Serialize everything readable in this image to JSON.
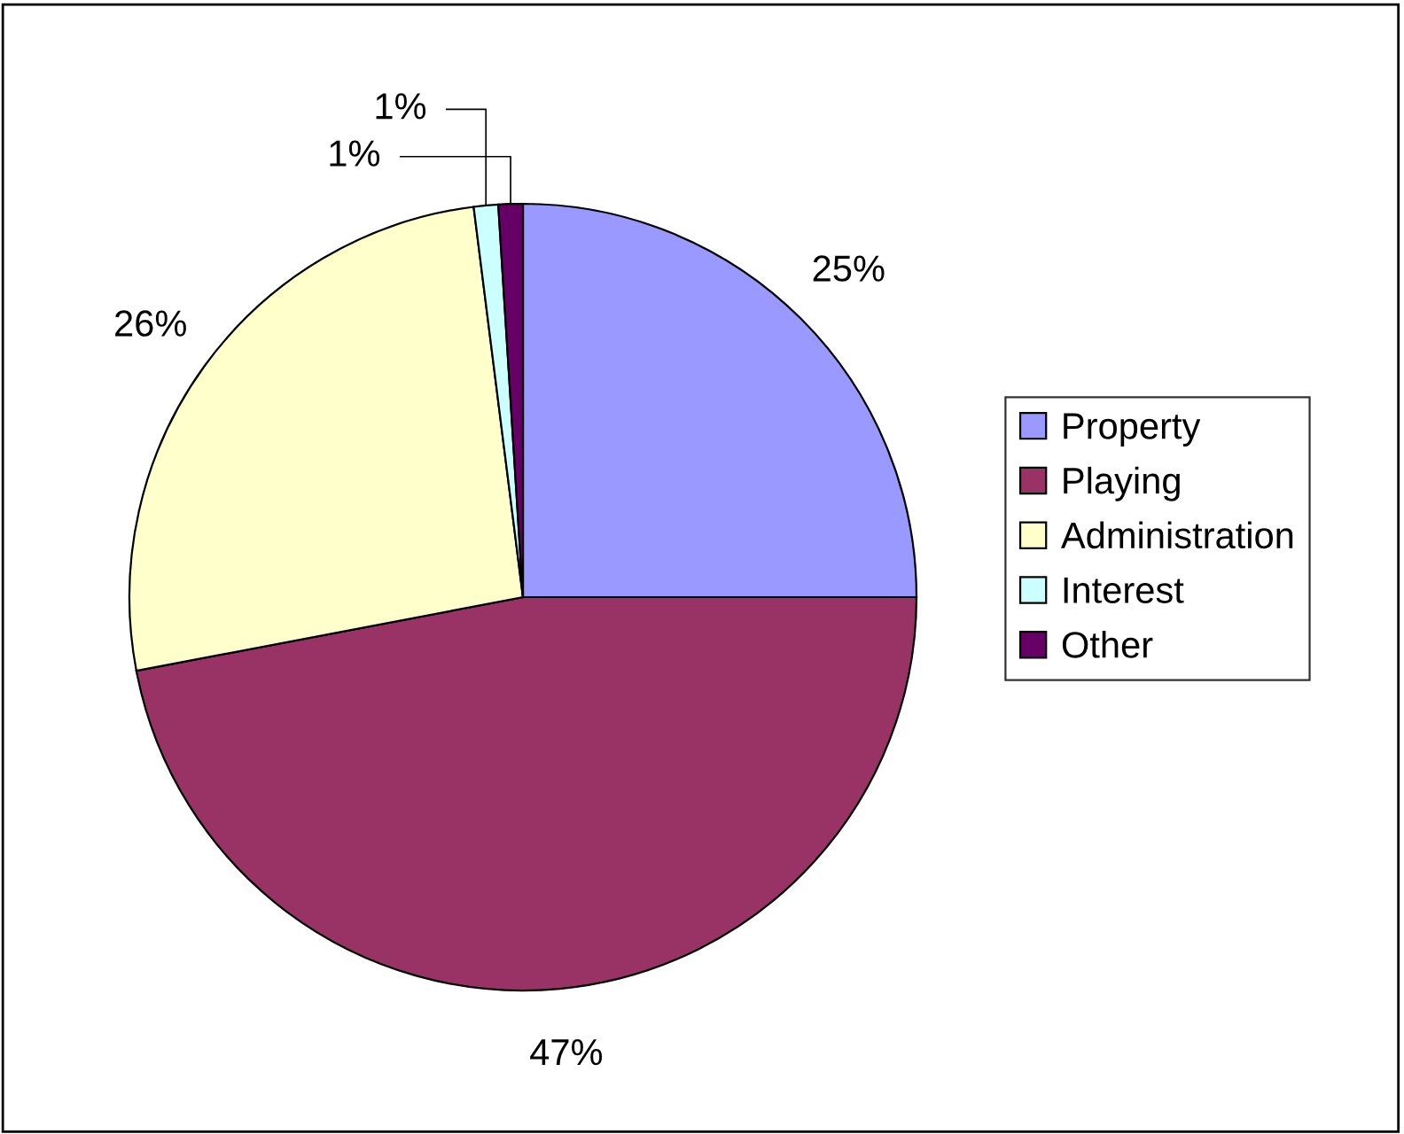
{
  "chart_data": {
    "type": "pie",
    "categories": [
      "Property",
      "Playing",
      "Administration",
      "Interest",
      "Other"
    ],
    "values": [
      25,
      47,
      26,
      1,
      1
    ],
    "colors": [
      "#9999ff",
      "#993366",
      "#ffffcc",
      "#ccffff",
      "#660066"
    ],
    "value_labels": [
      "25%",
      "47%",
      "26%",
      "1%",
      "1%"
    ],
    "legend": "right"
  }
}
